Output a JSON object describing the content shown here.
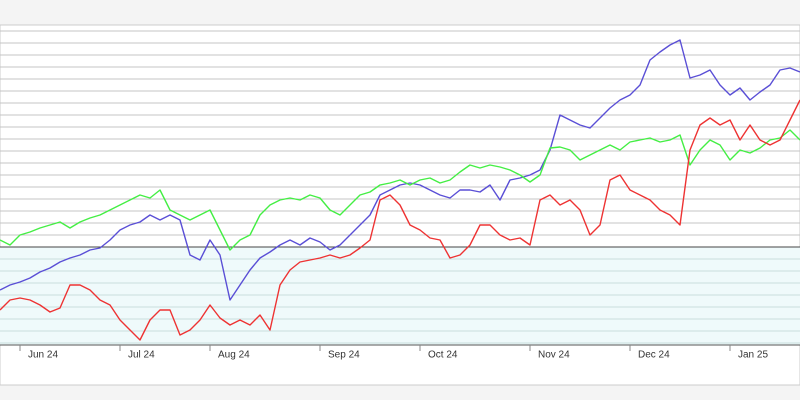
{
  "chart_data": {
    "type": "line",
    "categories": [
      null,
      null,
      "Jun 24",
      null,
      null,
      null,
      null,
      null,
      null,
      null,
      null,
      null,
      "Jul 24",
      null,
      null,
      null,
      null,
      null,
      null,
      null,
      null,
      "Aug 24",
      null,
      null,
      null,
      null,
      null,
      null,
      null,
      null,
      null,
      null,
      "Sep 24",
      null,
      null,
      null,
      null,
      null,
      null,
      null,
      null,
      null,
      "Oct 24",
      null,
      null,
      null,
      null,
      null,
      null,
      null,
      null,
      null,
      null,
      "Nov 24",
      null,
      null,
      null,
      null,
      null,
      null,
      null,
      null,
      null,
      "Dec 24",
      null,
      null,
      null,
      null,
      null,
      null,
      null,
      null,
      null,
      "Jan 25",
      null,
      null,
      null,
      null,
      null,
      null,
      null
    ],
    "series": [
      {
        "color": "#5a4fd6",
        "values": [
          -10.75,
          -9.5,
          -8.75,
          -7.75,
          -6.25,
          -5.25,
          -3.75,
          -2.75,
          -2,
          -0.75,
          -0.25,
          1.75,
          4.25,
          5.5,
          6.25,
          8,
          6.75,
          8,
          6.75,
          -2,
          -3.25,
          1.75,
          -2,
          -13.25,
          -9.5,
          -5.75,
          -2.75,
          -1.25,
          0.5,
          1.75,
          0.5,
          2.25,
          1.25,
          -0.75,
          0.5,
          3,
          5.5,
          8,
          13,
          14.25,
          15.5,
          16,
          15.5,
          14.25,
          13,
          12.25,
          14.25,
          14.25,
          13.75,
          15.5,
          11.75,
          16.75,
          17.25,
          18,
          19.25,
          24.25,
          33,
          31.75,
          30.5,
          29.75,
          32.25,
          34.75,
          36.75,
          38,
          40.5,
          46.75,
          48.75,
          50.5,
          51.75,
          42.25,
          43,
          44.25,
          40.5,
          38,
          39.75,
          36.75,
          38.75,
          40.5,
          44.25,
          44.75,
          43.75
        ]
      },
      {
        "color": "#44ee44",
        "values": [
          1.75,
          0.5,
          3,
          3.75,
          4.75,
          5.5,
          6.25,
          4.75,
          6.25,
          7.25,
          8,
          9.25,
          10.5,
          11.75,
          13,
          12.25,
          14.25,
          9.25,
          8,
          6.75,
          8,
          9.25,
          4.25,
          -0.75,
          1.75,
          3,
          8,
          10.5,
          11.75,
          12.25,
          11.75,
          13,
          12.25,
          9.25,
          8,
          10.5,
          13,
          13.75,
          15.5,
          16,
          16.75,
          15.5,
          16.75,
          17.25,
          16,
          16.75,
          18.75,
          20.5,
          19.75,
          20.5,
          20,
          19.25,
          18,
          16.25,
          18,
          24.75,
          25,
          24.25,
          21.75,
          23,
          24.25,
          25.5,
          24.25,
          26.25,
          26.75,
          27.25,
          26.25,
          26.75,
          28,
          20.5,
          24.25,
          26.75,
          25.5,
          21.75,
          24.25,
          23.5,
          24.75,
          26.75,
          27.25,
          29.25,
          26.75
        ]
      },
      {
        "color": "#ee3333",
        "values": [
          -15.75,
          -13.25,
          -12.75,
          -13.25,
          -14.5,
          -16.25,
          -15.25,
          -9.5,
          -9.5,
          -10.75,
          -13.25,
          -14.5,
          -18.25,
          -20.75,
          -23.25,
          -18.25,
          -15.75,
          -15.75,
          -22,
          -20.75,
          -18.25,
          -14.5,
          -17.75,
          -19.5,
          -18.25,
          -19.5,
          -17,
          -20.75,
          -9.5,
          -5.75,
          -3.75,
          -3.25,
          -2.75,
          -2,
          -2.75,
          -2,
          -0.25,
          1.75,
          11.75,
          13,
          10.5,
          5.5,
          4.25,
          2.25,
          1.75,
          -2.75,
          -2,
          0.5,
          5.5,
          5.5,
          3,
          1.75,
          2.25,
          0.5,
          11.75,
          13,
          10.5,
          11.75,
          9.25,
          3,
          5.5,
          16.75,
          18,
          14.25,
          13,
          11.75,
          9.25,
          8,
          5.5,
          24.25,
          30.5,
          32.25,
          30.5,
          31.75,
          26.75,
          30.5,
          26.75,
          25.5,
          26.75,
          31.75,
          36.75
        ]
      }
    ],
    "ylim": [
      -24.5,
      55.5
    ],
    "yticks": [
      -24,
      -21,
      -18,
      -15,
      -12,
      -9,
      -6,
      -3,
      0,
      3,
      6,
      9,
      12,
      15,
      18,
      21,
      24,
      27,
      30,
      33,
      36,
      39,
      42,
      45,
      48,
      51,
      54
    ],
    "grid": true,
    "reference_line": 0
  }
}
